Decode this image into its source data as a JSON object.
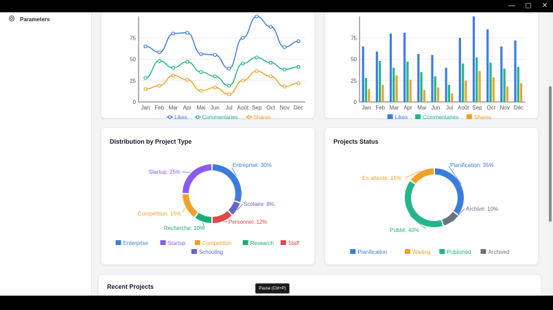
{
  "window": {
    "controls": {
      "minimize": "—",
      "maximize": "▢",
      "close": "✕"
    }
  },
  "sidebar": {
    "items": [
      {
        "label": "Parameters",
        "icon": "gear-icon"
      }
    ]
  },
  "colors": {
    "likes": "#3b7ddd",
    "commentaries": "#23b58a",
    "shares": "#eea22a"
  },
  "charts": {
    "line_engagement": {
      "type": "line",
      "categories": [
        "Jan",
        "Feb",
        "Mar",
        "Apr",
        "Mai",
        "Jun",
        "Jul",
        "Août",
        "Sep",
        "Oct",
        "Nov",
        "Déc"
      ],
      "ylim": [
        0,
        100
      ],
      "yticks": [
        "0",
        "25",
        "50",
        "75"
      ],
      "series": [
        {
          "name": "Likes",
          "values": [
            65,
            58,
            80,
            81,
            56,
            55,
            39,
            75,
            100,
            88,
            64,
            71
          ]
        },
        {
          "name": "Commentaries",
          "values": [
            28,
            48,
            40,
            47,
            35,
            30,
            19,
            45,
            52,
            46,
            38,
            41
          ]
        },
        {
          "name": "Shares",
          "values": [
            15,
            19,
            31,
            26,
            13,
            17,
            9,
            25,
            36,
            30,
            18,
            22
          ]
        }
      ]
    },
    "bar_engagement": {
      "type": "bar",
      "categories": [
        "Jan",
        "Feb",
        "Mar",
        "Apr",
        "Mai",
        "Jun",
        "Jul",
        "Août",
        "Sep",
        "Oct",
        "Nov",
        "Déc"
      ],
      "ylim": [
        0,
        100
      ],
      "yticks": [
        "0",
        "25",
        "50",
        "75"
      ],
      "series": [
        {
          "name": "Likes",
          "values": [
            65,
            59,
            80,
            81,
            56,
            55,
            40,
            75,
            100,
            85,
            65,
            72
          ]
        },
        {
          "name": "Commentaries",
          "values": [
            28,
            48,
            40,
            47,
            35,
            30,
            20,
            45,
            52,
            46,
            39,
            41
          ]
        },
        {
          "name": "Shares",
          "values": [
            15,
            20,
            31,
            26,
            14,
            17,
            10,
            25,
            36,
            29,
            18,
            22
          ]
        }
      ]
    },
    "distribution": {
      "type": "pie",
      "title": "Distribution by Project Type",
      "slices": [
        {
          "label": "Entreprise: 30%",
          "legend": "Enterprise",
          "value": 30,
          "color": "#3b7ddd"
        },
        {
          "label": "Scolaire: 8%",
          "legend": "Schooling",
          "value": 8,
          "color": "#6366c9"
        },
        {
          "label": "Personnel: 12%",
          "legend": "Staff",
          "value": 12,
          "color": "#e0484a"
        },
        {
          "label": "Recherche: 10%",
          "legend": "Research",
          "value": 10,
          "color": "#1aab7a"
        },
        {
          "label": "Compétition: 15%",
          "legend": "Competition",
          "value": 15,
          "color": "#eea22a"
        },
        {
          "label": "Startup: 25%",
          "legend": "Startup",
          "value": 25,
          "color": "#8b5cf0"
        }
      ],
      "legend_order": [
        0,
        5,
        4,
        3,
        2,
        1
      ]
    },
    "status": {
      "type": "pie",
      "title": "Projects Status",
      "slices": [
        {
          "label": "Planification: 35%",
          "legend": "Planification",
          "value": 35,
          "color": "#3b7ddd"
        },
        {
          "label": "Archivé: 10%",
          "legend": "Archived",
          "value": 10,
          "color": "#6b7280"
        },
        {
          "label": "Publié: 40%",
          "legend": "Published",
          "value": 40,
          "color": "#23b58a"
        },
        {
          "label": "En attente: 15%",
          "legend": "Waiting",
          "value": 15,
          "color": "#eea22a"
        }
      ],
      "legend_order": [
        0,
        3,
        2,
        1
      ]
    }
  },
  "recent": {
    "title": "Recent Projects"
  },
  "tooltip": {
    "text": "Pause (Ctrl+P)"
  }
}
